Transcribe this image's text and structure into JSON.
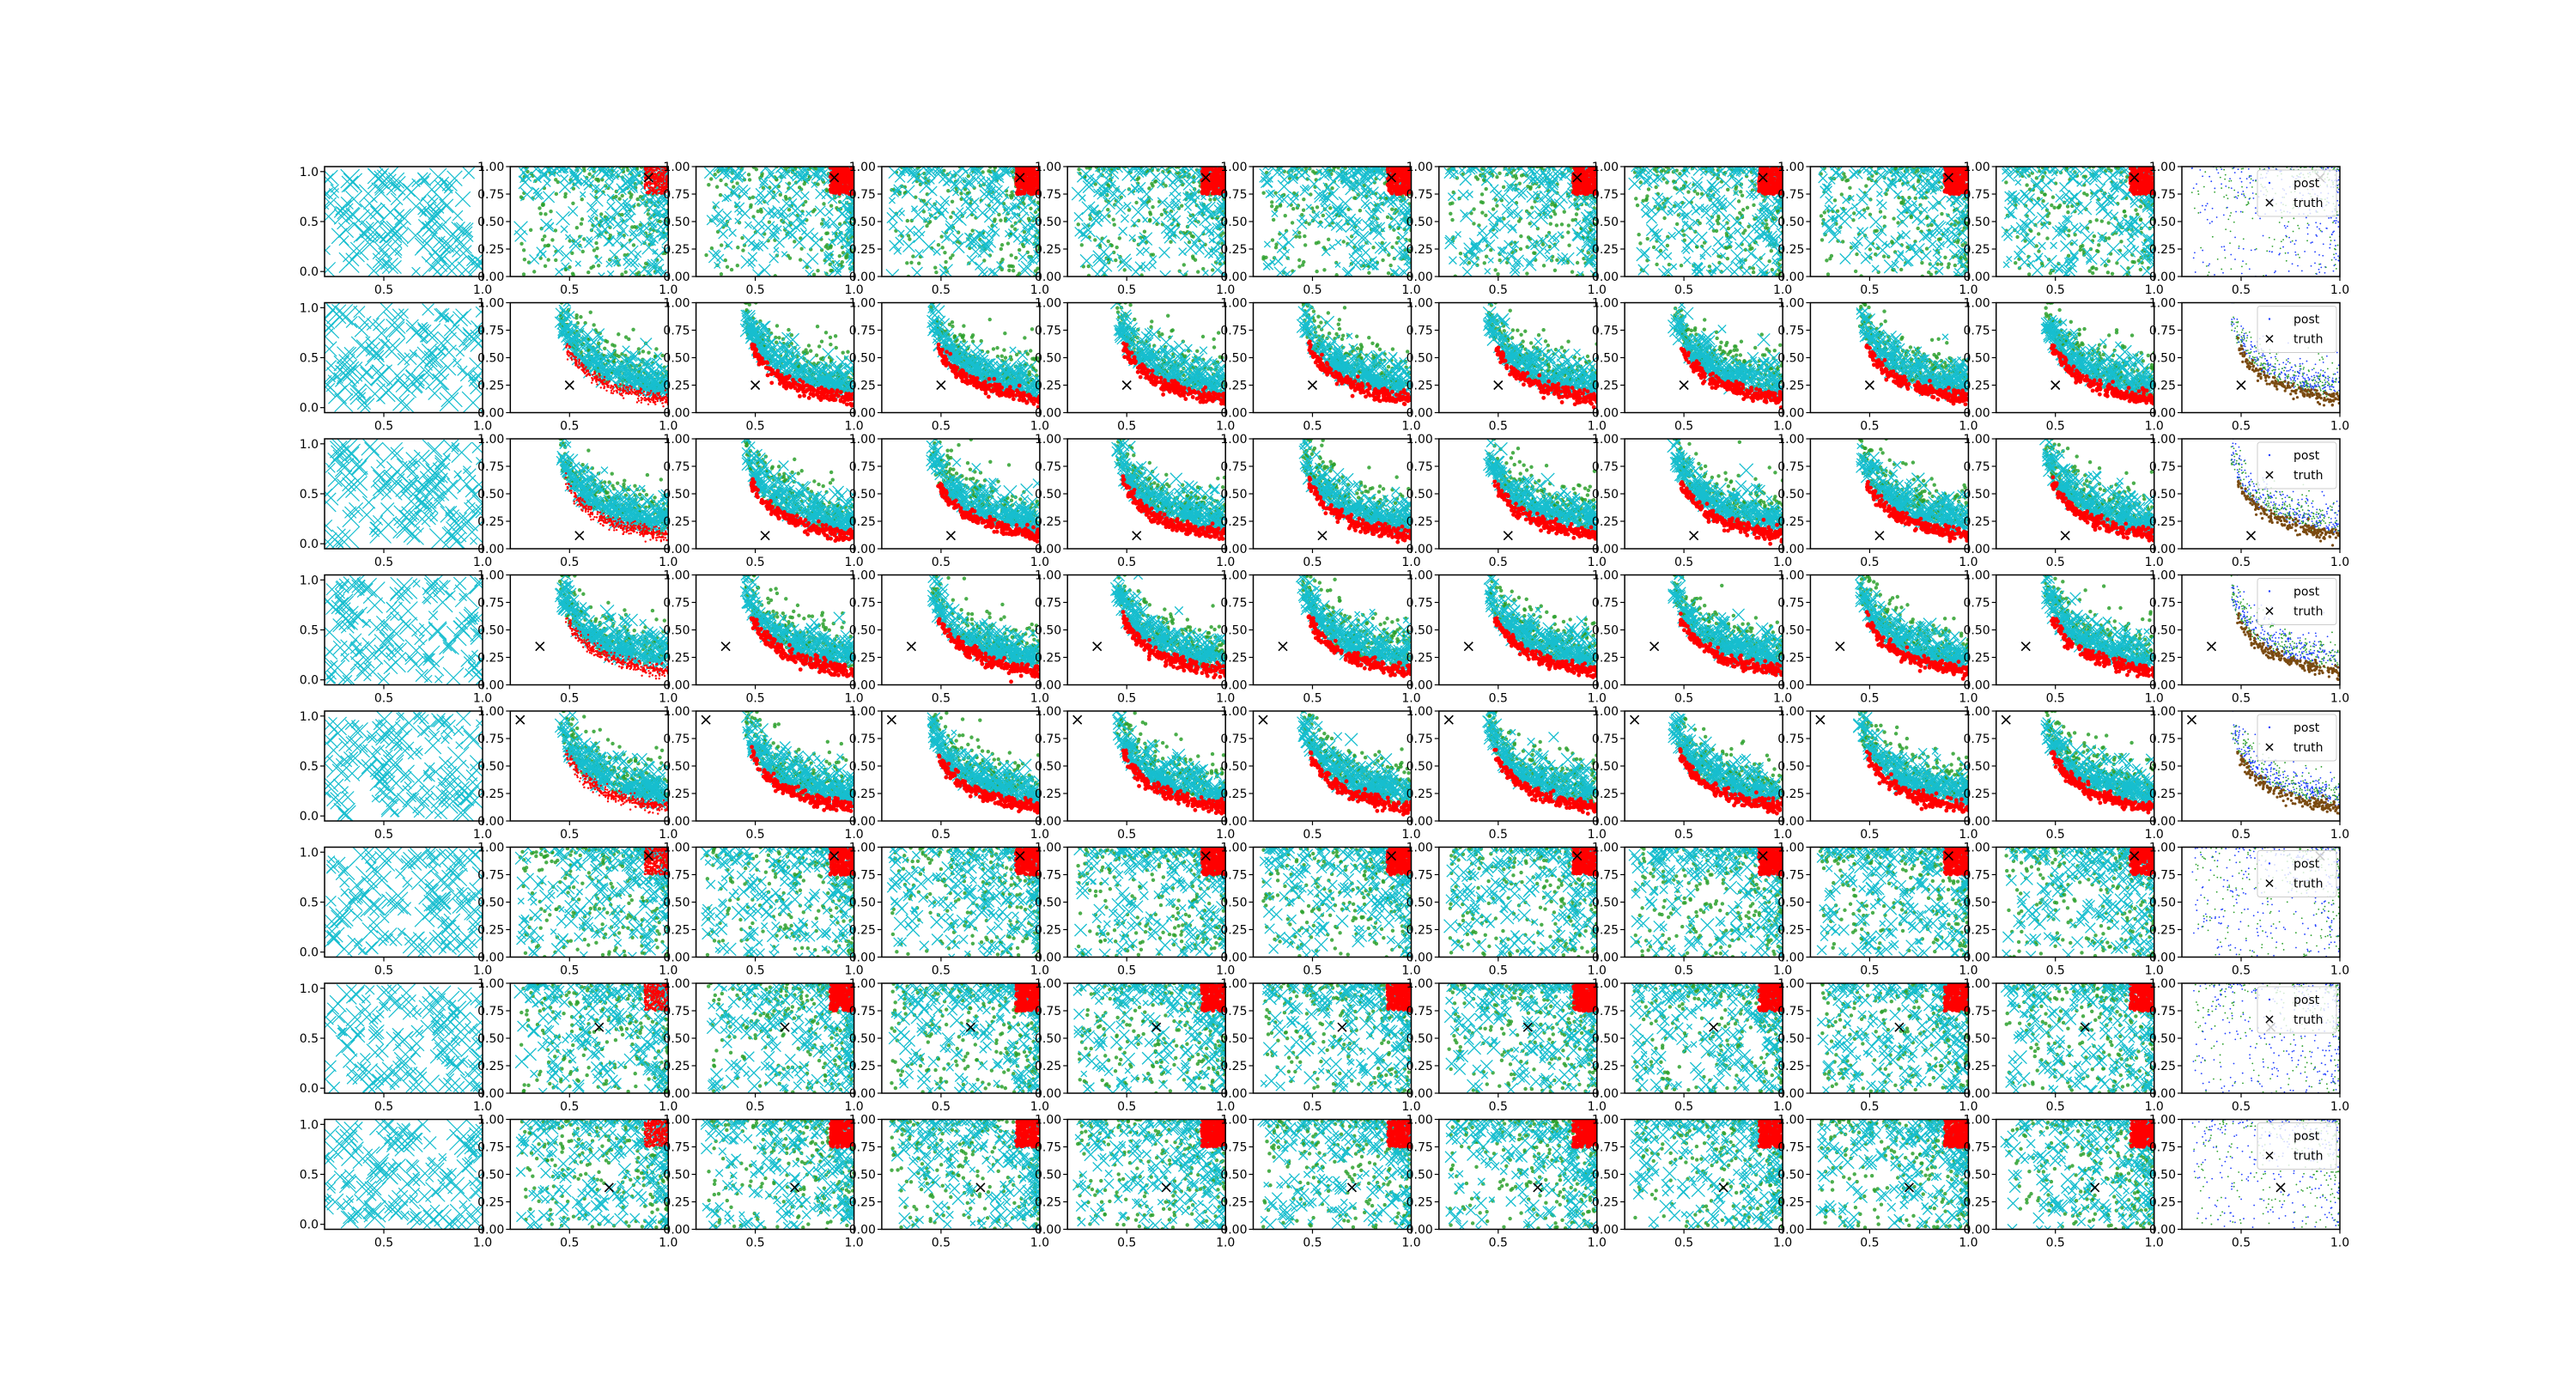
{
  "figure": {
    "rows": 8,
    "cols": 11
  },
  "legend": {
    "post_label": "post",
    "truth_label": "truth"
  },
  "axes_ticks": {
    "first_col_x": [
      "0.5",
      "1.0"
    ],
    "first_col_y": [
      "0.0",
      "0.5",
      "1.0"
    ],
    "other_x": [
      "0.5",
      "1.0"
    ],
    "other_y": [
      "0.00",
      "0.25",
      "0.50",
      "0.75",
      "1.00"
    ]
  },
  "colors": {
    "cyan": "#17becf",
    "green": "#2ca02c",
    "red": "#ff0000",
    "blue": "#1f3fff",
    "truth": "#000000",
    "axis": "#000000"
  },
  "chart_data": {
    "type": "scatter",
    "xlim_first_col": [
      0.2,
      1.0
    ],
    "xlim_other": [
      0.2,
      1.0
    ],
    "ylim_first_col": [
      -0.05,
      1.05
    ],
    "ylim_other": [
      0.0,
      1.0
    ],
    "truth_points": [
      [
        0.9,
        0.9
      ],
      [
        0.5,
        0.25
      ],
      [
        0.55,
        0.12
      ],
      [
        0.35,
        0.35
      ],
      [
        0.25,
        0.92
      ],
      [
        0.9,
        0.92
      ],
      [
        0.65,
        0.6
      ],
      [
        0.7,
        0.38
      ]
    ],
    "row_patterns": [
      "corner",
      "curve",
      "curve",
      "curve",
      "curve",
      "corner",
      "corner",
      "corner"
    ],
    "series": [
      "cyan samples",
      "green samples",
      "red samples",
      "post",
      "truth"
    ]
  }
}
